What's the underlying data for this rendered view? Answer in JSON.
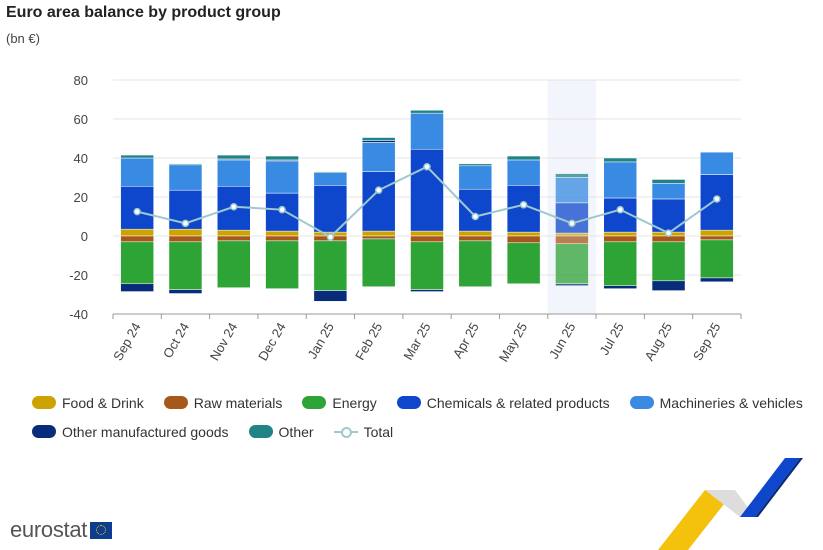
{
  "title": "Euro area balance by product group",
  "subtitle": "(bn €)",
  "logo_text": "eurostat",
  "chart_data": {
    "type": "bar",
    "stacked": true,
    "highlighted_category": "Jun 25",
    "categories": [
      "Sep 24",
      "Oct 24",
      "Nov 24",
      "Dec 24",
      "Jan 25",
      "Feb 25",
      "Mar 25",
      "Apr 25",
      "May 25",
      "Jun 25",
      "Jul 25",
      "Aug 25",
      "Sep 25"
    ],
    "ylim": [
      -40,
      80
    ],
    "yticks": [
      -40,
      -20,
      0,
      20,
      40,
      60,
      80
    ],
    "grid": true,
    "legend_position": "bottom",
    "series": [
      {
        "name": "Food & Drink",
        "color": "#cca300",
        "values": [
          3.5,
          3.5,
          3.0,
          2.5,
          2.0,
          2.5,
          2.5,
          2.5,
          2.0,
          1.5,
          2.0,
          2.0,
          3.0
        ]
      },
      {
        "name": "Raw materials",
        "color": "#a6581a",
        "values": [
          -3.0,
          -3.0,
          -2.5,
          -2.5,
          -2.5,
          -1.5,
          -3.0,
          -2.5,
          -3.5,
          -4.0,
          -3.0,
          -3.0,
          -2.0
        ]
      },
      {
        "name": "Energy",
        "color": "#2ea336",
        "values": [
          -21.5,
          -24.5,
          -24.0,
          -24.5,
          -25.5,
          -24.5,
          -24.5,
          -23.5,
          -21.0,
          -20.5,
          -22.5,
          -20.0,
          -19.5
        ]
      },
      {
        "name": "Chemicals & related products",
        "color": "#0e47cb",
        "values": [
          22.0,
          20.0,
          22.5,
          19.5,
          24.0,
          30.5,
          42.0,
          21.5,
          24.0,
          15.5,
          17.5,
          17.0,
          28.5
        ]
      },
      {
        "name": "Machineries & vehicles",
        "color": "#388ae2",
        "values": [
          14.5,
          13.0,
          13.5,
          16.5,
          6.5,
          15.0,
          18.5,
          12.0,
          13.0,
          13.0,
          18.5,
          8.0,
          11.5
        ]
      },
      {
        "name": "Other manufactured goods",
        "color": "#082b7a",
        "values": [
          -4.0,
          -2.0,
          0.5,
          0.5,
          -5.5,
          1.0,
          -1.0,
          0.0,
          0.0,
          -1.0,
          -1.5,
          -5.0,
          -2.0
        ]
      },
      {
        "name": "Other",
        "color": "#208486",
        "values": [
          1.5,
          0.5,
          2.0,
          2.0,
          0.5,
          1.5,
          1.5,
          1.0,
          2.0,
          2.0,
          2.0,
          2.0,
          0.0
        ]
      }
    ],
    "total": {
      "name": "Total",
      "color": "#9ec9d0",
      "values": [
        12.5,
        6.5,
        15.0,
        13.5,
        -0.5,
        23.5,
        35.5,
        10.0,
        16.0,
        6.5,
        13.5,
        1.5,
        19.0
      ]
    }
  }
}
